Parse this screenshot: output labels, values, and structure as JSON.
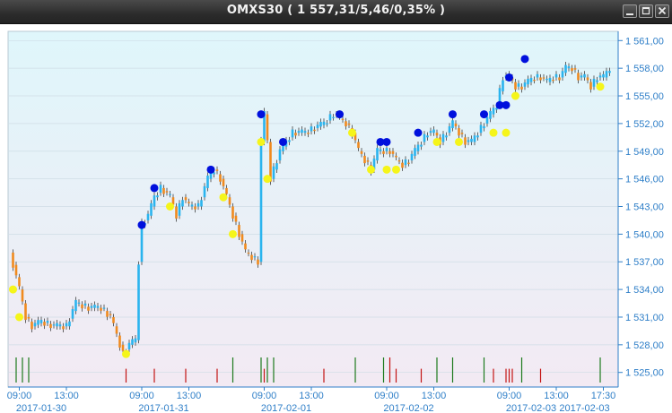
{
  "window": {
    "title": "OMXS30 ( 1 557,31/5,46/0,35% )",
    "buttons": {
      "minimize": "minimize-icon",
      "maximize": "maximize-icon",
      "close": "close-icon"
    }
  },
  "colors": {
    "background_top": "#dff6fb",
    "background_bottom": "#f3eaf3",
    "axis_text": "#2f7fc8",
    "up_candle": "#2ab4ee",
    "down_candle": "#f08a1e",
    "buy_marker": "#0010dd",
    "sell_marker": "#f5f51a",
    "volume_green": "#1d7a1d",
    "volume_red": "#c41414"
  },
  "chart_data": {
    "type": "candlestick",
    "ylim": [
      1524,
      1562
    ],
    "y_ticks": [
      "1 525,00",
      "1 528,00",
      "1 531,00",
      "1 534,00",
      "1 537,00",
      "1 540,00",
      "1 543,00",
      "1 546,00",
      "1 549,00",
      "1 552,00",
      "1 555,00",
      "1 558,00",
      "1 561,00"
    ],
    "y_tick_values": [
      1525,
      1528,
      1531,
      1534,
      1537,
      1540,
      1543,
      1546,
      1549,
      1552,
      1555,
      1558,
      1561
    ],
    "x_time_labels": [
      {
        "slot": 3,
        "label": "09:00"
      },
      {
        "slot": 18,
        "label": "13:00"
      },
      {
        "slot": 42,
        "label": "09:00"
      },
      {
        "slot": 57,
        "label": "13:00"
      },
      {
        "slot": 81,
        "label": "09:00"
      },
      {
        "slot": 96,
        "label": "13:00"
      },
      {
        "slot": 120,
        "label": "09:00"
      },
      {
        "slot": 135,
        "label": "13:00"
      },
      {
        "slot": 159,
        "label": "09:00"
      },
      {
        "slot": 174,
        "label": "13:00"
      },
      {
        "slot": 189,
        "label": "17:30"
      }
    ],
    "x_date_labels": [
      {
        "slot": 10,
        "label": "2017-01-30"
      },
      {
        "slot": 49,
        "label": "2017-01-31"
      },
      {
        "slot": 88,
        "label": "2017-02-01"
      },
      {
        "slot": 127,
        "label": "2017-02-02"
      },
      {
        "slot": 166,
        "label": "2017-02-03"
      },
      {
        "slot": 183,
        "label": "2017-02-03"
      }
    ],
    "close_path": [
      [
        0,
        1538
      ],
      [
        3,
        1534
      ],
      [
        5,
        1531
      ],
      [
        7,
        1530
      ],
      [
        10,
        1530.5
      ],
      [
        14,
        1530
      ],
      [
        18,
        1530
      ],
      [
        21,
        1532.5
      ],
      [
        25,
        1532
      ],
      [
        29,
        1532
      ],
      [
        32,
        1531
      ],
      [
        34,
        1529
      ],
      [
        36,
        1527
      ],
      [
        38,
        1528
      ],
      [
        40,
        1528.5
      ],
      [
        41,
        1537
      ],
      [
        42,
        1541
      ],
      [
        44,
        1542
      ],
      [
        46,
        1544
      ],
      [
        48,
        1545
      ],
      [
        51,
        1544
      ],
      [
        53,
        1542
      ],
      [
        55,
        1544
      ],
      [
        57,
        1543
      ],
      [
        60,
        1543
      ],
      [
        63,
        1546
      ],
      [
        65,
        1547
      ],
      [
        67,
        1546
      ],
      [
        69,
        1544
      ],
      [
        71,
        1542
      ],
      [
        73,
        1540
      ],
      [
        75,
        1538
      ],
      [
        77,
        1537.5
      ],
      [
        79,
        1537
      ],
      [
        80,
        1550
      ],
      [
        81,
        1553
      ],
      [
        82,
        1550
      ],
      [
        83,
        1546
      ],
      [
        84,
        1547
      ],
      [
        86,
        1549
      ],
      [
        88,
        1550
      ],
      [
        90,
        1551
      ],
      [
        94,
        1551
      ],
      [
        97,
        1551.5
      ],
      [
        100,
        1552
      ],
      [
        103,
        1553
      ],
      [
        107,
        1552
      ],
      [
        109,
        1551
      ],
      [
        111,
        1549
      ],
      [
        113,
        1548
      ],
      [
        115,
        1547
      ],
      [
        117,
        1549
      ],
      [
        119,
        1549
      ],
      [
        121,
        1549
      ],
      [
        123,
        1548
      ],
      [
        125,
        1547.5
      ],
      [
        127,
        1548
      ],
      [
        129,
        1549
      ],
      [
        131,
        1550
      ],
      [
        133,
        1551
      ],
      [
        135,
        1551
      ],
      [
        137,
        1550
      ],
      [
        139,
        1551
      ],
      [
        141,
        1552
      ],
      [
        143,
        1551
      ],
      [
        145,
        1550
      ],
      [
        147,
        1550
      ],
      [
        149,
        1551
      ],
      [
        151,
        1552
      ],
      [
        153,
        1553
      ],
      [
        155,
        1554
      ],
      [
        157,
        1557
      ],
      [
        159,
        1557
      ],
      [
        161,
        1556
      ],
      [
        163,
        1556
      ],
      [
        165,
        1556.5
      ],
      [
        167,
        1557
      ],
      [
        169,
        1557
      ],
      [
        171,
        1556.5
      ],
      [
        173,
        1557
      ],
      [
        175,
        1557
      ],
      [
        177,
        1558
      ],
      [
        179,
        1558
      ],
      [
        181,
        1557
      ],
      [
        183,
        1557
      ],
      [
        185,
        1556
      ],
      [
        187,
        1557
      ],
      [
        189,
        1557
      ],
      [
        191,
        1558
      ]
    ],
    "buy_signals": [
      [
        42,
        1541
      ],
      [
        46,
        1545
      ],
      [
        64,
        1547
      ],
      [
        80,
        1553
      ],
      [
        87,
        1550
      ],
      [
        105,
        1553
      ],
      [
        118,
        1550
      ],
      [
        120,
        1550
      ],
      [
        130,
        1551
      ],
      [
        141,
        1553
      ],
      [
        151,
        1553
      ],
      [
        156,
        1554
      ],
      [
        158,
        1554
      ],
      [
        159,
        1557
      ],
      [
        164,
        1559
      ]
    ],
    "sell_signals": [
      [
        1,
        1534
      ],
      [
        3,
        1531
      ],
      [
        37,
        1527
      ],
      [
        51,
        1543
      ],
      [
        68,
        1544
      ],
      [
        71,
        1540
      ],
      [
        80,
        1550
      ],
      [
        82,
        1546
      ],
      [
        109,
        1551
      ],
      [
        115,
        1547
      ],
      [
        120,
        1547
      ],
      [
        123,
        1547
      ],
      [
        136,
        1550
      ],
      [
        143,
        1550
      ],
      [
        154,
        1551
      ],
      [
        158,
        1551
      ],
      [
        161,
        1555
      ],
      [
        188,
        1556
      ]
    ],
    "volume_bars": [
      {
        "slot": 2,
        "color": "green",
        "height": 1
      },
      {
        "slot": 4,
        "color": "green",
        "height": 1
      },
      {
        "slot": 6,
        "color": "green",
        "height": 1
      },
      {
        "slot": 37,
        "color": "red",
        "height": 0.55
      },
      {
        "slot": 46,
        "color": "red",
        "height": 0.55
      },
      {
        "slot": 56,
        "color": "red",
        "height": 0.55
      },
      {
        "slot": 66,
        "color": "red",
        "height": 0.55
      },
      {
        "slot": 71,
        "color": "green",
        "height": 1
      },
      {
        "slot": 80,
        "color": "green",
        "height": 1
      },
      {
        "slot": 81,
        "color": "red",
        "height": 0.55
      },
      {
        "slot": 82,
        "color": "green",
        "height": 1
      },
      {
        "slot": 84,
        "color": "green",
        "height": 1
      },
      {
        "slot": 100,
        "color": "red",
        "height": 0.55
      },
      {
        "slot": 110,
        "color": "green",
        "height": 1
      },
      {
        "slot": 119,
        "color": "green",
        "height": 1
      },
      {
        "slot": 121,
        "color": "red",
        "height": 1
      },
      {
        "slot": 123,
        "color": "red",
        "height": 0.55
      },
      {
        "slot": 131,
        "color": "red",
        "height": 0.55
      },
      {
        "slot": 136,
        "color": "green",
        "height": 1
      },
      {
        "slot": 141,
        "color": "green",
        "height": 1
      },
      {
        "slot": 151,
        "color": "green",
        "height": 1
      },
      {
        "slot": 154,
        "color": "red",
        "height": 0.55
      },
      {
        "slot": 158,
        "color": "red",
        "height": 0.55
      },
      {
        "slot": 159,
        "color": "red",
        "height": 0.55
      },
      {
        "slot": 160,
        "color": "red",
        "height": 0.55
      },
      {
        "slot": 163,
        "color": "green",
        "height": 1
      },
      {
        "slot": 169,
        "color": "red",
        "height": 0.55
      },
      {
        "slot": 188,
        "color": "green",
        "height": 1
      }
    ],
    "grid": true
  }
}
